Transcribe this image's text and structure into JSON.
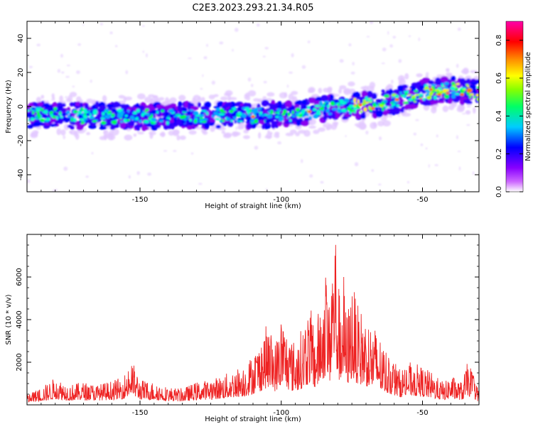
{
  "figure_title": "C2E3.2023.293.21.34.R05",
  "chart_data": [
    {
      "type": "heatmap",
      "xlabel": "Height of straight line (km)",
      "ylabel": "Frequency (Hz)",
      "xlim": [
        -190,
        -30
      ],
      "ylim": [
        -50,
        50
      ],
      "xticks": [
        -150,
        -100,
        -50
      ],
      "yticks": [
        -40,
        -20,
        0,
        20,
        40
      ],
      "colorbar": {
        "label": "Normalized spectral amplitude",
        "range": [
          0,
          0.9
        ],
        "ticks": [
          0.0,
          0.2,
          0.4,
          0.6,
          0.8
        ],
        "colormap": [
          "#ffffff",
          "#9900ff",
          "#0000ff",
          "#00ffff",
          "#00ff00",
          "#ffff00",
          "#ff8800",
          "#ff0000",
          "#ff00ff"
        ]
      },
      "trend": {
        "x": [
          -190,
          -150,
          -120,
          -100,
          -90,
          -80,
          -70,
          -60,
          -50,
          -40,
          -30
        ],
        "y": [
          -5,
          -6,
          -5,
          -5,
          -3,
          0,
          1,
          3,
          8,
          10,
          8
        ]
      }
    },
    {
      "type": "line",
      "xlabel": "Height of straight line (km)",
      "ylabel": "SNR (10 * v/v)",
      "xlim": [
        -190,
        -30
      ],
      "ylim": [
        0,
        8000
      ],
      "xticks": [
        -150,
        -100,
        -50
      ],
      "yticks": [
        2000,
        4000,
        6000
      ],
      "color": "#ee2222",
      "series": [
        {
          "x": [
            -190,
            -185,
            -182,
            -180,
            -175,
            -170,
            -165,
            -160,
            -156,
            -153,
            -150,
            -145,
            -140,
            -135,
            -130,
            -125,
            -120,
            -115,
            -112,
            -108,
            -105,
            -102,
            -100,
            -97,
            -95,
            -92,
            -90,
            -88,
            -86,
            -84,
            -83,
            -82,
            -81,
            -80,
            -79,
            -78,
            -77,
            -76,
            -75,
            -73,
            -71,
            -70,
            -68,
            -66,
            -64,
            -62,
            -60,
            -58,
            -56,
            -54,
            -52,
            -50,
            -47,
            -44,
            -42,
            -40,
            -38,
            -36,
            -34,
            -32,
            -30
          ],
          "y": [
            400,
            700,
            900,
            1100,
            800,
            900,
            800,
            950,
            1100,
            1800,
            1000,
            900,
            700,
            650,
            900,
            1000,
            1200,
            1500,
            1700,
            2400,
            3200,
            2500,
            3600,
            2700,
            2500,
            3200,
            4000,
            3000,
            4200,
            5600,
            4000,
            6000,
            7800,
            5000,
            4200,
            5400,
            3600,
            4100,
            5000,
            3900,
            3700,
            3500,
            3200,
            3000,
            2400,
            2100,
            1800,
            1400,
            1600,
            1700,
            1600,
            1500,
            1300,
            1000,
            900,
            1200,
            1000,
            900,
            1700,
            1300,
            500
          ]
        }
      ]
    }
  ]
}
